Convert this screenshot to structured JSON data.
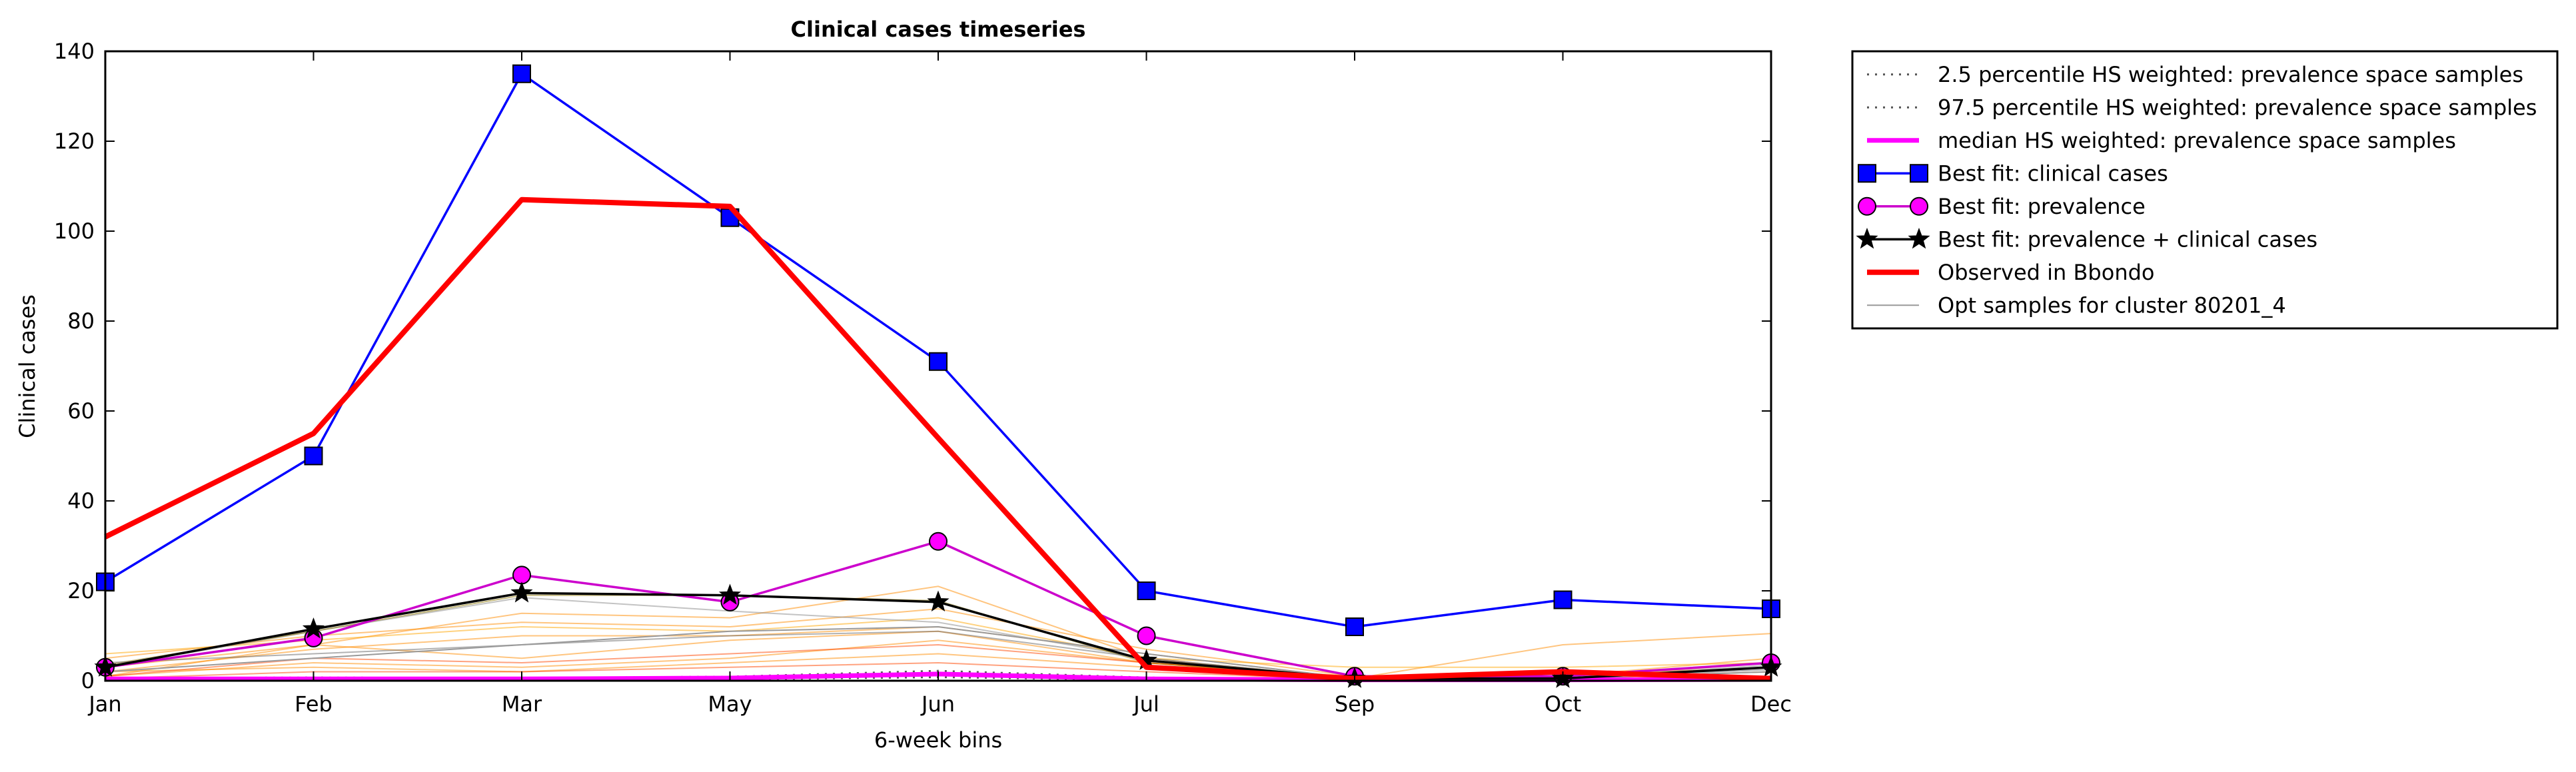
{
  "chart_data": {
    "type": "line",
    "title": "Clinical cases timeseries",
    "xlabel": "6-week bins",
    "ylabel": "Clinical cases",
    "categories": [
      "Jan",
      "Feb",
      "Mar",
      "May",
      "Jun",
      "Jul",
      "Sep",
      "Oct",
      "Dec"
    ],
    "ylim": [
      0,
      140
    ],
    "yticks": [
      0,
      20,
      40,
      60,
      80,
      100,
      120,
      140
    ],
    "grid": false,
    "legend_position": "outside-top-right",
    "series": [
      {
        "name": "2.5 percentile HS weighted: prevalence space samples",
        "color": "#555555",
        "style": "dotted",
        "values": [
          0.2,
          0.2,
          0.2,
          0.3,
          0.8,
          0.2,
          0.1,
          0.1,
          0.2
        ]
      },
      {
        "name": "97.5 percentile HS weighted: prevalence space samples",
        "color": "#555555",
        "style": "dotted",
        "values": [
          0.6,
          0.7,
          0.6,
          0.9,
          2.2,
          0.7,
          0.3,
          0.3,
          0.5
        ]
      },
      {
        "name": "median HS weighted: prevalence space samples",
        "color": "#ff00ff",
        "style": "solid-thick",
        "values": [
          0.4,
          0.4,
          0.4,
          0.6,
          1.5,
          0.4,
          0.2,
          0.2,
          0.3
        ]
      },
      {
        "name": "Best fit: clinical cases",
        "color": "#0000ff",
        "marker": "square",
        "values": [
          22,
          50,
          135,
          103,
          71,
          20,
          12,
          18,
          16
        ]
      },
      {
        "name": "Best fit: prevalence",
        "color": "#cc00cc",
        "marker": "circle",
        "values": [
          3,
          9.5,
          23.5,
          17.5,
          31,
          10,
          1,
          1,
          4
        ]
      },
      {
        "name": "Best fit: prevalence + clinical cases",
        "color": "#000000",
        "marker": "star",
        "values": [
          3,
          11.5,
          19.5,
          19,
          17.5,
          4.5,
          0.5,
          0.5,
          3
        ]
      },
      {
        "name": "Observed in Bbondo",
        "color": "#ff0000",
        "style": "solid-thick",
        "values": [
          32,
          55,
          107,
          105.5,
          54,
          3,
          0.5,
          2,
          0.5
        ]
      },
      {
        "name": "Opt samples for cluster 80201_4",
        "color": "#999999",
        "style": "solid-thin",
        "values": [
          2,
          5,
          8,
          11,
          12,
          6,
          0.5,
          0.5,
          2
        ]
      }
    ],
    "sample_lines": [
      {
        "color": "#ff8c00",
        "values": [
          1,
          8,
          15,
          14,
          21,
          5,
          0.5,
          8,
          10.5
        ]
      },
      {
        "color": "#ff8c00",
        "values": [
          5,
          10,
          13,
          12,
          16,
          7,
          1,
          1,
          5
        ]
      },
      {
        "color": "#ff8c00",
        "values": [
          2,
          7,
          10,
          10,
          12,
          6,
          0.5,
          0.5,
          4
        ]
      },
      {
        "color": "#ff8c00",
        "values": [
          3,
          8,
          5,
          9,
          11,
          4,
          1,
          1,
          3
        ]
      },
      {
        "color": "#ff8c00",
        "values": [
          1,
          4,
          3,
          5,
          9,
          4,
          0.5,
          0.5,
          2
        ]
      },
      {
        "color": "#ff8c00",
        "values": [
          2,
          3,
          2,
          4,
          6,
          3,
          0.5,
          0.5,
          2
        ]
      },
      {
        "color": "#ff4500",
        "values": [
          1,
          5,
          4,
          6,
          8,
          4,
          0.5,
          1,
          3
        ]
      },
      {
        "color": "#ff4500",
        "values": [
          0.5,
          2,
          2,
          3,
          4,
          2,
          0.2,
          0.5,
          1
        ]
      },
      {
        "color": "#ffa500",
        "values": [
          6,
          9,
          12,
          11,
          14,
          5,
          3,
          3,
          4
        ]
      },
      {
        "color": "#888888",
        "values": [
          3,
          11,
          18.5,
          15.5,
          13,
          5,
          0.5,
          0.5,
          3.5
        ]
      },
      {
        "color": "#8b7500",
        "values": [
          3.5,
          11,
          19,
          19,
          17.8,
          4,
          0.3,
          0.5,
          3
        ]
      },
      {
        "color": "#666666",
        "values": [
          4,
          6,
          8,
          10,
          11,
          5,
          0.5,
          0.5,
          2.5
        ]
      }
    ]
  }
}
